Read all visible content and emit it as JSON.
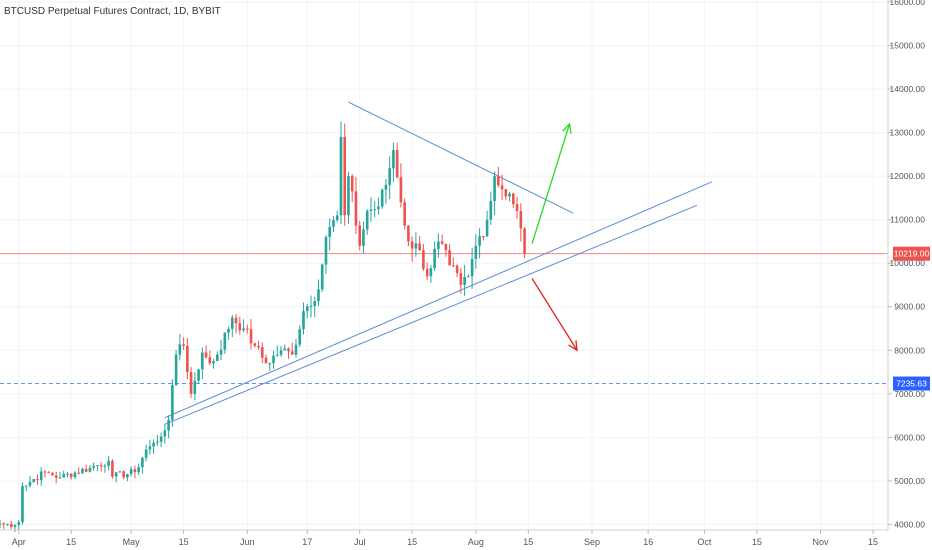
{
  "chart_data": {
    "type": "candlestick",
    "title": "BTCUSD Perpetual Futures Contract, 1D, BYBIT",
    "y_axis": {
      "side": "right",
      "ylim": [
        3550,
        16000
      ],
      "ticks": [
        4000,
        5000,
        6000,
        7000,
        8000,
        9000,
        10000,
        11000,
        12000,
        13000,
        14000,
        15000,
        16000
      ],
      "tick_labels": [
        "4000.00",
        "5000.00",
        "6000.00",
        "7000.00",
        "8000.00",
        "9000.00",
        "10000.00",
        "11000.00",
        "12000.00",
        "13000.00",
        "14000.00",
        "15000.00",
        "16000.00"
      ]
    },
    "x_axis": {
      "start_date": "2019-03-27",
      "end_date": "2019-11-19",
      "ticks": [
        {
          "label": "Apr",
          "date": "2019-04-01"
        },
        {
          "label": "15",
          "date": "2019-04-15"
        },
        {
          "label": "May",
          "date": "2019-05-01"
        },
        {
          "label": "15",
          "date": "2019-05-15"
        },
        {
          "label": "Jun",
          "date": "2019-06-01"
        },
        {
          "label": "17",
          "date": "2019-06-17"
        },
        {
          "label": "Jul",
          "date": "2019-07-01"
        },
        {
          "label": "15",
          "date": "2019-07-15"
        },
        {
          "label": "Aug",
          "date": "2019-08-01"
        },
        {
          "label": "15",
          "date": "2019-08-15"
        },
        {
          "label": "Sep",
          "date": "2019-09-01"
        },
        {
          "label": "16",
          "date": "2019-09-16"
        },
        {
          "label": "Oct",
          "date": "2019-10-01"
        },
        {
          "label": "15",
          "date": "2019-10-15"
        },
        {
          "label": "Nov",
          "date": "2019-11-01"
        },
        {
          "label": "15",
          "date": "2019-11-15"
        }
      ]
    },
    "price_lines": [
      {
        "label": "10219.00",
        "value": 10219,
        "color": "#ef5350",
        "style": "solid"
      },
      {
        "label": "7235.63",
        "value": 7235.63,
        "color": "#2962ff",
        "style": "dashed"
      }
    ],
    "trend_lines": [
      {
        "from": {
          "date": "2019-06-28",
          "value": 13700
        },
        "to": {
          "date": "2019-08-27",
          "value": 11150
        }
      },
      {
        "from": {
          "date": "2019-05-10",
          "value": 6450
        },
        "to": {
          "date": "2019-10-03",
          "value": 11870
        }
      },
      {
        "from": {
          "date": "2019-05-10",
          "value": 6300
        },
        "to": {
          "date": "2019-09-29",
          "value": 11330
        }
      }
    ],
    "arrows": [
      {
        "color": "#22dd22",
        "from": {
          "date": "2019-08-16",
          "value": 10450
        },
        "to": {
          "date": "2019-08-26",
          "value": 13200
        }
      },
      {
        "color": "#dd2222",
        "from": {
          "date": "2019-08-16",
          "value": 9650
        },
        "to": {
          "date": "2019-08-28",
          "value": 8000
        }
      }
    ],
    "up_color": "#26a69a",
    "down_color": "#ef5350",
    "close_anchors": [
      [
        "2019-03-27",
        4020
      ],
      [
        "2019-03-31",
        3990
      ],
      [
        "2019-04-01",
        4050
      ],
      [
        "2019-04-02",
        4880
      ],
      [
        "2019-04-08",
        5200
      ],
      [
        "2019-04-12",
        5080
      ],
      [
        "2019-04-20",
        5300
      ],
      [
        "2019-04-25",
        5460
      ],
      [
        "2019-04-26",
        5100
      ],
      [
        "2019-05-02",
        5200
      ],
      [
        "2019-05-05",
        5720
      ],
      [
        "2019-05-08",
        5900
      ],
      [
        "2019-05-11",
        6400
      ],
      [
        "2019-05-12",
        7200
      ],
      [
        "2019-05-13",
        7900
      ],
      [
        "2019-05-15",
        8100
      ],
      [
        "2019-05-16",
        7500
      ],
      [
        "2019-05-17",
        7000
      ],
      [
        "2019-05-20",
        7950
      ],
      [
        "2019-05-22",
        7700
      ],
      [
        "2019-05-24",
        7900
      ],
      [
        "2019-05-28",
        8750
      ],
      [
        "2019-05-31",
        8500
      ],
      [
        "2019-06-03",
        8100
      ],
      [
        "2019-06-06",
        7700
      ],
      [
        "2019-06-10",
        8000
      ],
      [
        "2019-06-13",
        7900
      ],
      [
        "2019-06-16",
        8900
      ],
      [
        "2019-06-20",
        9400
      ],
      [
        "2019-06-22",
        10600
      ],
      [
        "2019-06-25",
        11100
      ],
      [
        "2019-06-26",
        12900
      ],
      [
        "2019-06-27",
        11100
      ],
      [
        "2019-06-28",
        12000
      ],
      [
        "2019-07-01",
        10400
      ],
      [
        "2019-07-03",
        11200
      ],
      [
        "2019-07-06",
        11300
      ],
      [
        "2019-07-08",
        11800
      ],
      [
        "2019-07-10",
        12600
      ],
      [
        "2019-07-12",
        11400
      ],
      [
        "2019-07-14",
        10500
      ],
      [
        "2019-07-17",
        10300
      ],
      [
        "2019-07-19",
        9700
      ],
      [
        "2019-07-22",
        10500
      ],
      [
        "2019-07-25",
        9950
      ],
      [
        "2019-07-28",
        9500
      ],
      [
        "2019-07-30",
        9700
      ],
      [
        "2019-08-01",
        10400
      ],
      [
        "2019-08-04",
        11000
      ],
      [
        "2019-08-06",
        12000
      ],
      [
        "2019-08-08",
        11700
      ],
      [
        "2019-08-10",
        11600
      ],
      [
        "2019-08-12",
        11200
      ],
      [
        "2019-08-13",
        10800
      ],
      [
        "2019-08-14",
        10219
      ]
    ]
  }
}
